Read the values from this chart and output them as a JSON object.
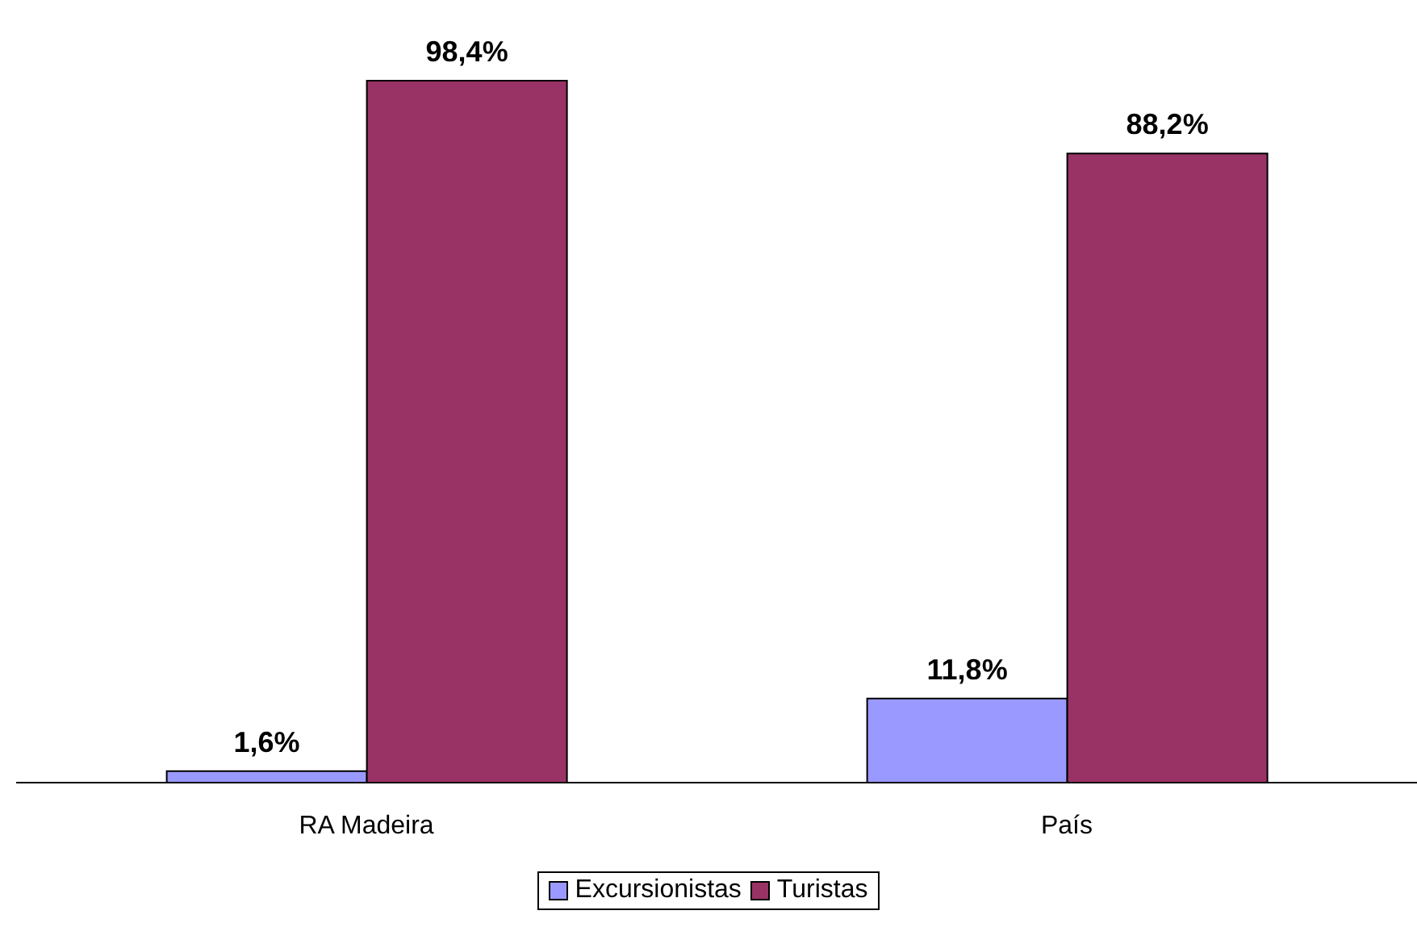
{
  "chart_data": {
    "type": "bar",
    "categories": [
      "RA Madeira",
      "País"
    ],
    "series": [
      {
        "name": "Excursionistas",
        "color": "#9999ff",
        "values": [
          1.6,
          11.8
        ],
        "value_labels": [
          "1,6%",
          "11,8%"
        ]
      },
      {
        "name": "Turistas",
        "color": "#993366",
        "values": [
          98.4,
          88.2
        ],
        "value_labels": [
          "98,4%",
          "88,2%"
        ]
      }
    ],
    "legend": "bottom",
    "grid": false
  }
}
